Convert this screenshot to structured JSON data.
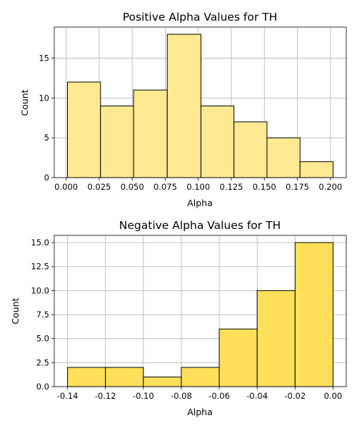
{
  "chart_data": [
    {
      "type": "bar",
      "title": "Positive Alpha Values for TH",
      "xlabel": "Alpha",
      "ylabel": "Count",
      "bin_edges": [
        0.001,
        0.026,
        0.051,
        0.0765,
        0.102,
        0.127,
        0.152,
        0.177,
        0.202
      ],
      "values": [
        12,
        9,
        11,
        18,
        9,
        7,
        5,
        2
      ],
      "xlim": [
        -0.009,
        0.212
      ],
      "ylim": [
        0,
        18.9
      ],
      "xticks": [
        0.0,
        0.025,
        0.05,
        0.075,
        0.1,
        0.125,
        0.15,
        0.175,
        0.2
      ],
      "xtick_labels": [
        "0.000",
        "0.025",
        "0.050",
        "0.075",
        "0.100",
        "0.125",
        "0.150",
        "0.175",
        "0.200"
      ],
      "yticks": [
        0,
        5,
        10,
        15
      ],
      "ytick_labels": [
        "0",
        "5",
        "10",
        "15"
      ],
      "grid": true,
      "color": "#fde992",
      "edgecolor": "#000000"
    },
    {
      "type": "bar",
      "title": "Negative Alpha Values for TH",
      "xlabel": "Alpha",
      "ylabel": "Count",
      "bin_edges": [
        -0.14,
        -0.12,
        -0.1,
        -0.08,
        -0.06,
        -0.04,
        -0.02,
        0.0
      ],
      "values": [
        2,
        2,
        1,
        2,
        6,
        10,
        15
      ],
      "xlim": [
        -0.147,
        0.007
      ],
      "ylim": [
        0,
        15.75
      ],
      "xticks": [
        -0.14,
        -0.12,
        -0.1,
        -0.08,
        -0.06,
        -0.04,
        -0.02,
        0.0
      ],
      "xtick_labels": [
        "-0.14",
        "-0.12",
        "-0.10",
        "-0.08",
        "-0.06",
        "-0.04",
        "-0.02",
        "0.00"
      ],
      "yticks": [
        0,
        2.5,
        5,
        7.5,
        10,
        12.5,
        15
      ],
      "ytick_labels": [
        "0.0",
        "2.5",
        "5.0",
        "7.5",
        "10.0",
        "12.5",
        "15.0"
      ],
      "grid": true,
      "color": "#fee05a",
      "edgecolor": "#000000"
    }
  ]
}
